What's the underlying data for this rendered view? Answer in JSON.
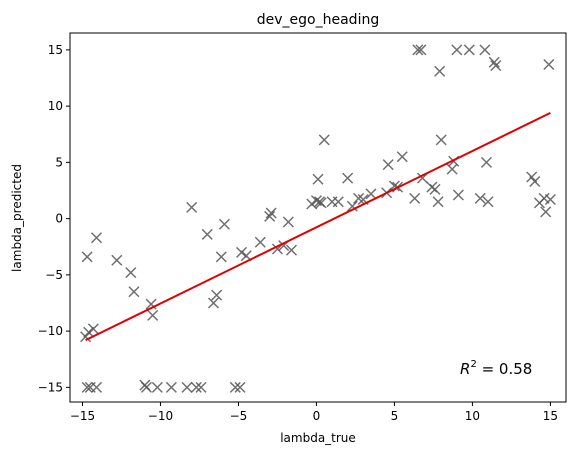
{
  "chart_data": {
    "type": "scatter",
    "title": "dev_ego_heading",
    "xlabel": "lambda_true",
    "ylabel": "lambda_predicted",
    "xlim": [
      -15.8,
      16.0
    ],
    "ylim": [
      -16.3,
      16.5
    ],
    "xticks": [
      -15,
      -10,
      -5,
      0,
      5,
      10,
      15
    ],
    "yticks": [
      -15,
      -10,
      -5,
      0,
      5,
      10,
      15
    ],
    "grid": false,
    "annotation": {
      "prefix": "R",
      "superscript": "2",
      "value_text": " = 0.58"
    },
    "marker": "x",
    "marker_color": "#555555",
    "fit_line_color": "#e00000",
    "fit_line": {
      "x": [
        -14.8,
        15.0
      ],
      "y": [
        -10.8,
        9.4
      ]
    },
    "points": [
      [
        -14.8,
        -10.5
      ],
      [
        -14.6,
        -10.1
      ],
      [
        -14.3,
        -9.8
      ],
      [
        -14.7,
        -3.4
      ],
      [
        -14.1,
        -1.7
      ],
      [
        -14.7,
        -15.0
      ],
      [
        -14.5,
        -15.0
      ],
      [
        -14.1,
        -15.0
      ],
      [
        -12.8,
        -3.7
      ],
      [
        -11.9,
        -4.8
      ],
      [
        -11.7,
        -6.5
      ],
      [
        -11.0,
        -14.8
      ],
      [
        -10.9,
        -15.0
      ],
      [
        -10.6,
        -7.6
      ],
      [
        -10.5,
        -8.6
      ],
      [
        -10.2,
        -15.0
      ],
      [
        -9.3,
        -15.0
      ],
      [
        -8.3,
        -15.0
      ],
      [
        -7.7,
        -15.0
      ],
      [
        -7.4,
        -15.0
      ],
      [
        -8.0,
        1.0
      ],
      [
        -7.0,
        -1.4
      ],
      [
        -6.6,
        -7.5
      ],
      [
        -6.4,
        -6.8
      ],
      [
        -6.1,
        -3.4
      ],
      [
        -5.9,
        -0.5
      ],
      [
        -5.2,
        -15.0
      ],
      [
        -4.9,
        -15.0
      ],
      [
        -4.8,
        -3.0
      ],
      [
        -4.5,
        -3.3
      ],
      [
        -3.6,
        -2.1
      ],
      [
        -3.0,
        0.2
      ],
      [
        -2.9,
        0.5
      ],
      [
        -2.5,
        -2.7
      ],
      [
        -2.1,
        -2.4
      ],
      [
        -1.8,
        -0.3
      ],
      [
        -1.6,
        -2.8
      ],
      [
        -0.3,
        1.3
      ],
      [
        0.0,
        1.6
      ],
      [
        0.1,
        3.5
      ],
      [
        0.2,
        1.5
      ],
      [
        0.3,
        1.4
      ],
      [
        0.5,
        7.0
      ],
      [
        1.0,
        1.5
      ],
      [
        1.4,
        1.5
      ],
      [
        2.0,
        3.6
      ],
      [
        2.3,
        1.1
      ],
      [
        2.7,
        1.8
      ],
      [
        3.0,
        1.7
      ],
      [
        3.5,
        2.2
      ],
      [
        4.5,
        2.3
      ],
      [
        4.6,
        4.8
      ],
      [
        5.0,
        2.9
      ],
      [
        5.2,
        2.8
      ],
      [
        5.5,
        5.5
      ],
      [
        6.3,
        1.8
      ],
      [
        6.5,
        15.0
      ],
      [
        6.7,
        15.0
      ],
      [
        6.8,
        3.6
      ],
      [
        7.4,
        2.8
      ],
      [
        7.6,
        2.6
      ],
      [
        7.8,
        1.5
      ],
      [
        7.9,
        13.1
      ],
      [
        8.0,
        7.0
      ],
      [
        8.7,
        4.4
      ],
      [
        8.8,
        5.1
      ],
      [
        9.1,
        2.1
      ],
      [
        9.0,
        15.0
      ],
      [
        9.8,
        15.0
      ],
      [
        10.5,
        1.8
      ],
      [
        10.8,
        15.0
      ],
      [
        10.9,
        5.0
      ],
      [
        11.0,
        1.5
      ],
      [
        11.4,
        13.9
      ],
      [
        11.5,
        13.6
      ],
      [
        13.8,
        3.7
      ],
      [
        14.0,
        3.3
      ],
      [
        14.3,
        1.4
      ],
      [
        14.6,
        1.8
      ],
      [
        14.7,
        0.6
      ],
      [
        14.9,
        13.7
      ],
      [
        15.0,
        1.7
      ]
    ]
  }
}
